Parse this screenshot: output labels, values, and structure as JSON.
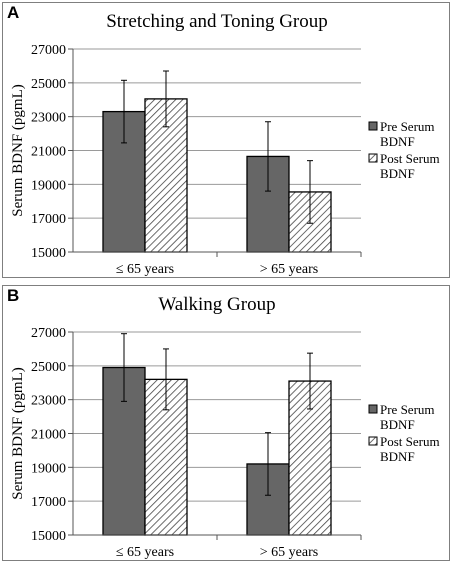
{
  "chart_data": [
    {
      "panel": "A",
      "type": "bar",
      "title": "Stretching and Toning Group",
      "ylabel": "Serum BDNF (pgmL)",
      "xlabel": "",
      "ylim": [
        15000,
        27000
      ],
      "yticks": [
        15000,
        17000,
        19000,
        21000,
        23000,
        25000,
        27000
      ],
      "categories": [
        "≤ 65 years",
        "> 65 years"
      ],
      "legend_position": "right",
      "grid": true,
      "series": [
        {
          "name": "Pre Serum BDNF",
          "values": [
            23300,
            20650
          ],
          "error": [
            1850,
            2050
          ],
          "color": "#666666",
          "pattern": "solid"
        },
        {
          "name": "Post Serum BDNF",
          "values": [
            24050,
            18550
          ],
          "error": [
            1650,
            1850
          ],
          "color": "#ffffff",
          "pattern": "hatch"
        }
      ]
    },
    {
      "panel": "B",
      "type": "bar",
      "title": "Walking Group",
      "ylabel": "Serum BDNF (pgmL)",
      "xlabel": "",
      "ylim": [
        15000,
        27000
      ],
      "yticks": [
        15000,
        17000,
        19000,
        21000,
        23000,
        25000,
        27000
      ],
      "categories": [
        "≤ 65 years",
        "> 65 years"
      ],
      "legend_position": "right",
      "grid": true,
      "series": [
        {
          "name": "Pre Serum BDNF",
          "values": [
            24900,
            19200
          ],
          "error": [
            2000,
            1850
          ],
          "color": "#666666",
          "pattern": "solid"
        },
        {
          "name": "Post Serum BDNF",
          "values": [
            24200,
            24100
          ],
          "error": [
            1800,
            1650
          ],
          "color": "#ffffff",
          "pattern": "hatch"
        }
      ]
    }
  ]
}
